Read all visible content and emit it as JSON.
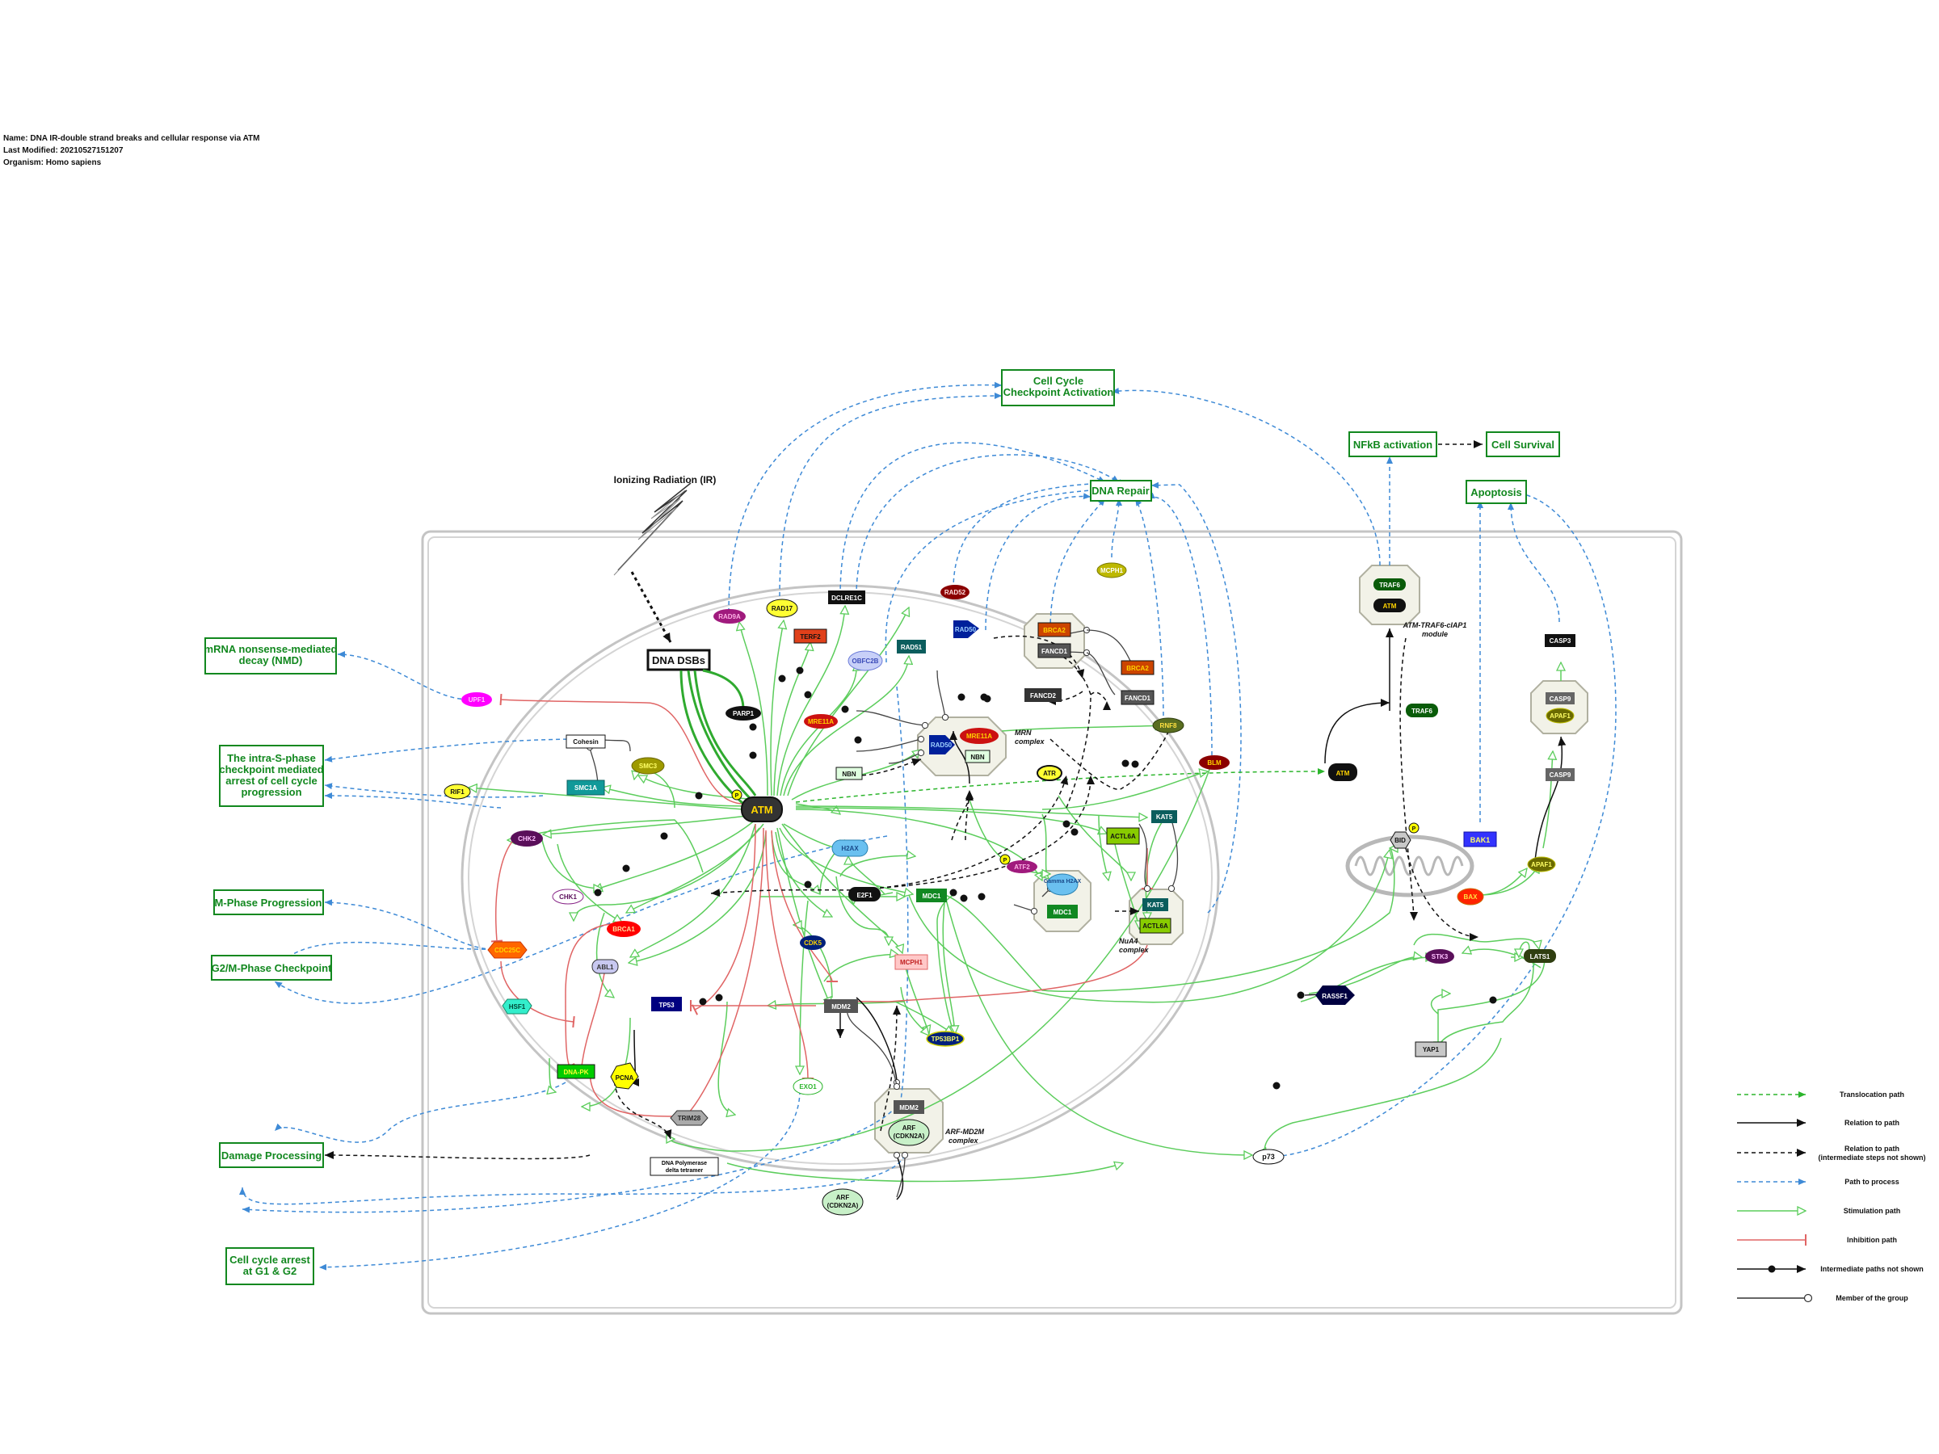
{
  "meta": {
    "name": "Name: DNA IR-double strand breaks and cellular response via ATM",
    "modified": "Last Modified: 20210527151207",
    "organism": "Organism: Homo sapiens"
  },
  "colors": {
    "process_green": "#12881f",
    "stimulation": "#5ccd5c",
    "inhibition": "#e06565",
    "path_blue": "#3e8ad6",
    "cell_border": "#bbbbbb"
  },
  "processes": {
    "cell_cycle": [
      "Cell Cycle",
      "Checkpoint Activation"
    ],
    "dna_repair": [
      "DNA Repair"
    ],
    "nfkb": [
      "NFkB activation"
    ],
    "cell_survival": [
      "Cell Survival"
    ],
    "apoptosis": [
      "Apoptosis"
    ],
    "nmd": [
      "mRNA nonsense-mediated",
      "decay (NMD)"
    ],
    "intra_s": [
      "The intra-S-phase",
      "checkpoint mediated",
      "arrest of cell cycle",
      "progression"
    ],
    "m_phase": [
      "M-Phase Progression"
    ],
    "g2m": [
      "G2/M-Phase Checkpoint"
    ],
    "damage": [
      "Damage Processing"
    ],
    "arrest": [
      "Cell cycle arrest",
      "at G1 & G2"
    ]
  },
  "labels": {
    "ir": "Ionizing Radiation (IR)",
    "dsb": "DNA DSBs",
    "mrn": [
      "MRN",
      "complex"
    ],
    "nua4": [
      "NuA4",
      "complex"
    ],
    "arf_mdm2": [
      "ARF-MD2M",
      "complex"
    ],
    "traf_module": [
      "ATM-TRAF6-cIAP1",
      "module"
    ],
    "polymerase": [
      "DNA Polymerase",
      "delta tetramer"
    ],
    "phos": "P"
  },
  "nodes": {
    "atm": "ATM",
    "parp1": "PARP1",
    "rad9a": "RAD9A",
    "rad17": "RAD17",
    "terf2": "TERF2",
    "dclre1c": "DCLRE1C",
    "obfc2b": "OBFC2B",
    "rad51": "RAD51",
    "rad52": "RAD52",
    "rad50_top": "RAD50",
    "brca2": "BRCA2",
    "fancd1": "FANCD1",
    "brca2_b": "BRCA2",
    "fancd1_b": "FANCD1",
    "fancd2": "FANCD2",
    "mcph1_top": "MCPH1",
    "mre11a": "MRE11A",
    "mre11a_c": "MRE11A",
    "rad50_c": "RAD50",
    "nbn_c": "NBN",
    "nbn": "NBN",
    "rnf8": "RNF8",
    "blm": "BLM",
    "atr": "ATR",
    "upf1": "UPF1",
    "cohesin": "Cohesin",
    "smc3": "SMC3",
    "smc1a": "SMC1A",
    "rif1": "RIF1",
    "chk2": "CHK2",
    "chk1": "CHK1",
    "brca1": "BRCA1",
    "cdc25c": "CDC25C",
    "abl1": "ABL1",
    "hsf1": "HSF1",
    "tp53": "TP53",
    "dnapk": "DNA-PK",
    "pcna": "PCNA",
    "trim28": "TRIM28",
    "exo1": "EXO1",
    "h2ax": "H2AX",
    "atf2": "ATF2",
    "e2f1": "E2F1",
    "mdc1": "MDC1",
    "cdk5": "CDK5",
    "mcph1": "MCPH1",
    "mdm2": "MDM2",
    "tp53bp1": "TP53BP1",
    "gamma_h2ax": "Gamma H2AX",
    "mdc1_b": "MDC1",
    "actl6a": "ACTL6A",
    "kat5_top": "KAT5",
    "kat5": "KAT5",
    "actl6a_b": "ACTL6A",
    "mdm2_c": "MDM2",
    "arf_c": [
      "ARF",
      "(CDKN2A)"
    ],
    "arf": [
      "ARF",
      "(CDKN2A)"
    ],
    "traf6_top": "TRAF6",
    "atm_traf": "ATM",
    "traf6": "TRAF6",
    "atm_out": "ATM",
    "bid": "BID",
    "bak1": "BAK1",
    "bax": "BAX",
    "apaf1": "APAF1",
    "casp9": "CASP9",
    "casp9_c": "CASP9",
    "apaf1_c": "APAF1",
    "casp3": "CASP3",
    "stk3": "STK3",
    "lats1": "LATS1",
    "yap1": "YAP1",
    "rassf1": "RASSF1",
    "p73": "p73"
  },
  "legend": [
    "Translocation path",
    "Relation to path",
    [
      "Relation to path",
      "(intermediate steps not shown)"
    ],
    "Path to process",
    "Stimulation path",
    "Inhibition path",
    "Intermediate paths not shown",
    "Member of the group"
  ]
}
